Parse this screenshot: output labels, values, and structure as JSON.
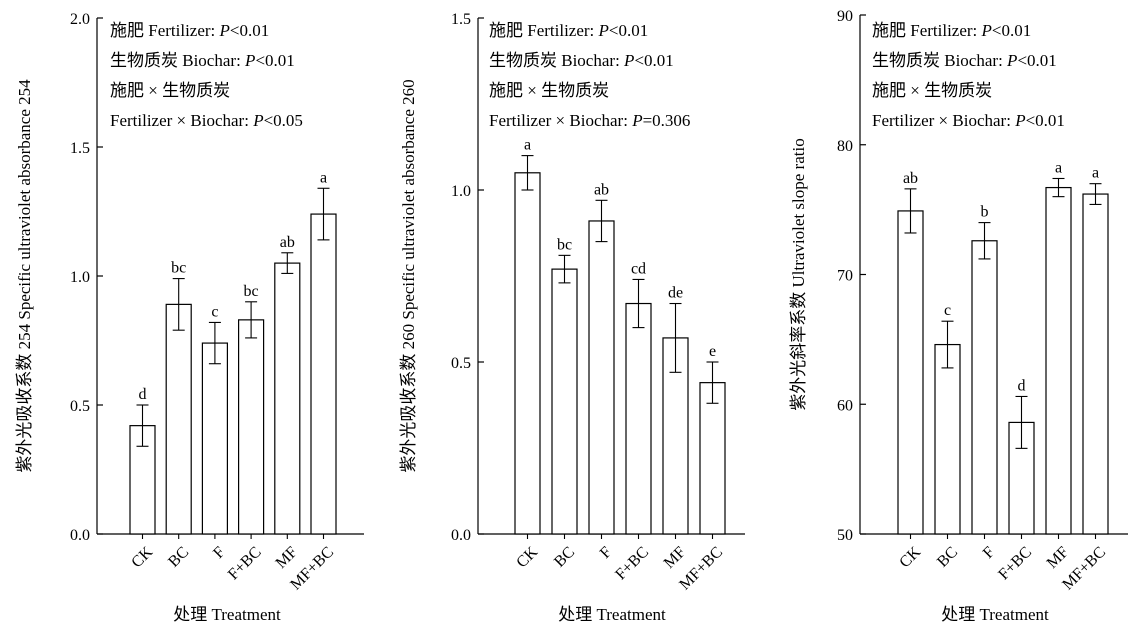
{
  "chart_data": [
    {
      "type": "bar",
      "categories": [
        "CK",
        "BC",
        "F",
        "F+BC",
        "MF",
        "MF+BC"
      ],
      "values": [
        0.42,
        0.89,
        0.74,
        0.83,
        1.05,
        1.24
      ],
      "errors": [
        0.08,
        0.1,
        0.08,
        0.07,
        0.04,
        0.1
      ],
      "significance": [
        "d",
        "bc",
        "c",
        "bc",
        "ab",
        "a"
      ],
      "ylim": [
        0,
        2.0
      ],
      "yticks": [
        0.0,
        0.5,
        1.0,
        1.5,
        2.0
      ],
      "ytick_labels": [
        "0.0",
        "0.5",
        "1.0",
        "1.5",
        "2.0"
      ],
      "ylabel": "紫外光吸收系数 254 Specific ultraviolet absorbance 254",
      "xlabel": "处理 Treatment",
      "annotations": [
        {
          "text": "施肥 Fertilizer: ",
          "italic": "P",
          "rest": "<0.01"
        },
        {
          "text": "生物质炭 Biochar: ",
          "italic": "P",
          "rest": "<0.01"
        },
        {
          "text": "施肥 × 生物质炭",
          "italic": "",
          "rest": ""
        },
        {
          "text": "Fertilizer × Biochar: ",
          "italic": "P",
          "rest": "<0.05"
        }
      ]
    },
    {
      "type": "bar",
      "categories": [
        "CK",
        "BC",
        "F",
        "F+BC",
        "MF",
        "MF+BC"
      ],
      "values": [
        1.05,
        0.77,
        0.91,
        0.67,
        0.57,
        0.44
      ],
      "errors": [
        0.05,
        0.04,
        0.06,
        0.07,
        0.1,
        0.06
      ],
      "significance": [
        "a",
        "bc",
        "ab",
        "cd",
        "de",
        "e"
      ],
      "ylim": [
        0,
        1.5
      ],
      "yticks": [
        0.0,
        0.5,
        1.0,
        1.5
      ],
      "ytick_labels": [
        "0.0",
        "0.5",
        "1.0",
        "1.5"
      ],
      "ylabel": "紫外光吸收系数 260 Specific ultraviolet absorbance 260",
      "xlabel": "处理 Treatment",
      "annotations": [
        {
          "text": "施肥 Fertilizer: ",
          "italic": "P",
          "rest": "<0.01"
        },
        {
          "text": "生物质炭 Biochar: ",
          "italic": "P",
          "rest": "<0.01"
        },
        {
          "text": "施肥 × 生物质炭",
          "italic": "",
          "rest": ""
        },
        {
          "text": "Fertilizer × Biochar: ",
          "italic": "P",
          "rest": "=0.306"
        }
      ]
    },
    {
      "type": "bar",
      "categories": [
        "CK",
        "BC",
        "F",
        "F+BC",
        "MF",
        "MF+BC"
      ],
      "values": [
        74.9,
        64.6,
        72.6,
        58.6,
        76.7,
        76.2
      ],
      "errors": [
        1.7,
        1.8,
        1.4,
        2.0,
        0.7,
        0.8
      ],
      "significance": [
        "ab",
        "c",
        "b",
        "d",
        "a",
        "a"
      ],
      "ylim": [
        50,
        90
      ],
      "yticks": [
        50,
        60,
        70,
        80,
        90
      ],
      "ytick_labels": [
        "50",
        "60",
        "70",
        "80",
        "90"
      ],
      "ylabel": "紫外光斜率系数 Ultraviolet slope ratio",
      "xlabel": "处理 Treatment",
      "annotations": [
        {
          "text": "施肥 Fertilizer: ",
          "italic": "P",
          "rest": "<0.01"
        },
        {
          "text": "生物质炭 Biochar: ",
          "italic": "P",
          "rest": "<0.01"
        },
        {
          "text": "施肥 × 生物质炭",
          "italic": "",
          "rest": ""
        },
        {
          "text": "Fertilizer × Biochar: ",
          "italic": "P",
          "rest": "<0.01"
        }
      ]
    }
  ]
}
